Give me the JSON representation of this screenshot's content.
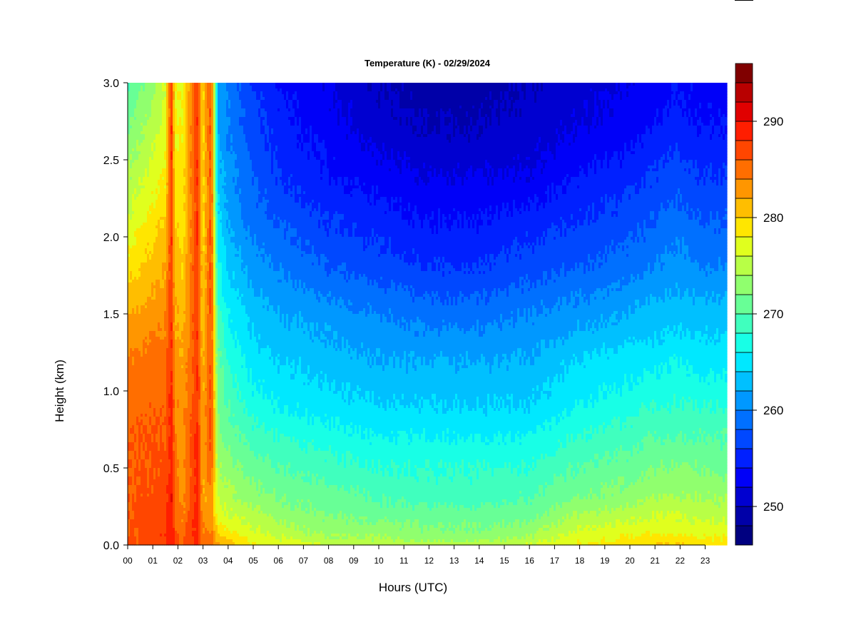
{
  "chart_data": {
    "type": "heatmap",
    "title": "Temperature (K) - 02/29/2024",
    "xlabel": "Hours (UTC)",
    "ylabel": "Height (km)",
    "xlim": [
      0,
      24
    ],
    "ylim": [
      0.0,
      3.0
    ],
    "x_ticks": [
      "00",
      "01",
      "02",
      "03",
      "04",
      "05",
      "06",
      "07",
      "08",
      "09",
      "10",
      "11",
      "12",
      "13",
      "14",
      "15",
      "16",
      "17",
      "18",
      "19",
      "20",
      "21",
      "22",
      "23"
    ],
    "y_ticks": [
      "0.0",
      "0.5",
      "1.0",
      "1.5",
      "2.0",
      "2.5",
      "3.0"
    ],
    "colorbar": {
      "label": "",
      "min": 246,
      "max": 294,
      "step": 2,
      "ticks": [
        250,
        260,
        270,
        280,
        290
      ],
      "tick_labels": [
        "250",
        "260",
        "270",
        "280",
        "290"
      ],
      "colors": [
        "#000080",
        "#0000a8",
        "#0000d0",
        "#0000f8",
        "#0020ff",
        "#0048ff",
        "#0070ff",
        "#0098ff",
        "#00c0ff",
        "#00e8ff",
        "#18ffe6",
        "#40ffbe",
        "#68ff96",
        "#90ff6e",
        "#b8ff46",
        "#e0ff1e",
        "#ffe600",
        "#ffbe00",
        "#ff9600",
        "#ff6e00",
        "#ff4600",
        "#ff1e00",
        "#e00000",
        "#b80000",
        "#800000"
      ]
    },
    "heights_km": [
      0.0,
      0.05,
      0.1,
      0.2,
      0.3,
      0.5,
      0.7,
      0.9,
      1.2,
      1.5,
      1.8,
      2.1,
      2.4,
      2.7,
      3.0
    ],
    "profiles": [
      {
        "hour": 0.0,
        "temps": [
          286,
          286,
          286,
          286,
          286,
          286,
          286,
          285,
          284,
          282,
          279,
          276,
          274,
          272,
          270
        ]
      },
      {
        "hour": 1.0,
        "temps": [
          287,
          287,
          287,
          287,
          286.5,
          286,
          286,
          285.5,
          285,
          283,
          281,
          279,
          277,
          275,
          273
        ]
      },
      {
        "hour": 1.5,
        "temps": [
          288,
          288,
          287.5,
          287,
          287,
          286.5,
          286,
          285.5,
          285,
          283.5,
          282,
          280,
          278,
          277,
          276
        ]
      },
      {
        "hour": 1.75,
        "temps": [
          290,
          290,
          290,
          290,
          290,
          289,
          289,
          289,
          288,
          288,
          288,
          288,
          288,
          288,
          288
        ]
      },
      {
        "hour": 1.9,
        "temps": [
          287,
          287,
          286,
          286,
          285,
          285,
          284,
          284,
          283,
          282,
          281,
          280,
          279,
          278,
          278
        ]
      },
      {
        "hour": 2.2,
        "temps": [
          286,
          286,
          285,
          284,
          283,
          283,
          283,
          283,
          282,
          281,
          280,
          279,
          279,
          278,
          278
        ]
      },
      {
        "hour": 2.8,
        "temps": [
          289,
          289,
          289,
          289,
          289,
          289,
          289,
          288,
          288,
          288,
          288,
          288,
          288,
          288,
          288
        ]
      },
      {
        "hour": 3.0,
        "temps": [
          285,
          285,
          284,
          283,
          282,
          282,
          282,
          282,
          281,
          280,
          280,
          279,
          279,
          279,
          279
        ]
      },
      {
        "hour": 3.35,
        "temps": [
          286,
          285,
          284,
          283,
          283,
          286,
          287,
          287,
          287,
          287,
          287,
          287,
          287,
          287,
          287
        ]
      },
      {
        "hour": 3.6,
        "temps": [
          282,
          281,
          279,
          277,
          276,
          274,
          273,
          272,
          271,
          269,
          267,
          265,
          263,
          262,
          262
        ]
      },
      {
        "hour": 4.0,
        "temps": [
          281,
          280,
          278,
          276,
          275,
          273,
          271,
          270,
          268,
          266,
          264,
          262,
          261,
          260,
          260
        ]
      },
      {
        "hour": 5.0,
        "temps": [
          278,
          277,
          276,
          275,
          273,
          271,
          269,
          267,
          265,
          263,
          261,
          259,
          258,
          257,
          256
        ]
      },
      {
        "hour": 6.0,
        "temps": [
          277,
          276,
          275,
          273,
          272,
          270,
          268,
          266,
          264,
          262,
          260,
          258,
          256,
          255,
          254
        ]
      },
      {
        "hour": 8.0,
        "temps": [
          276,
          274,
          273,
          272,
          271,
          269,
          267,
          265,
          263,
          261,
          258,
          256,
          254,
          253,
          252
        ]
      },
      {
        "hour": 10.0,
        "temps": [
          275,
          274,
          273,
          271,
          270,
          268,
          266,
          264,
          262,
          260,
          257,
          255,
          253,
          251,
          250
        ]
      },
      {
        "hour": 12.0,
        "temps": [
          275,
          273,
          272,
          271,
          269,
          268,
          266,
          264,
          262,
          259,
          256,
          254,
          252,
          250,
          249
        ]
      },
      {
        "hour": 14.0,
        "temps": [
          275,
          273,
          272,
          271,
          269,
          268,
          266,
          264,
          262,
          259,
          256,
          254,
          252,
          250,
          249
        ]
      },
      {
        "hour": 16.0,
        "temps": [
          276,
          274,
          273,
          271,
          270,
          268,
          266,
          264,
          262,
          260,
          257,
          255,
          252,
          251,
          250
        ]
      },
      {
        "hour": 18.0,
        "temps": [
          278,
          277,
          276,
          274,
          272,
          270,
          268,
          266,
          264,
          261,
          258,
          256,
          254,
          252,
          251
        ]
      },
      {
        "hour": 20.0,
        "temps": [
          279,
          278,
          277,
          275,
          273,
          271,
          269,
          267,
          265,
          262,
          259,
          257,
          255,
          253,
          252
        ]
      },
      {
        "hour": 21.0,
        "temps": [
          280,
          279,
          277,
          276,
          274,
          272,
          270,
          268,
          265,
          263,
          260,
          258,
          256,
          254,
          253
        ]
      },
      {
        "hour": 22.0,
        "temps": [
          280,
          279,
          277,
          276,
          274,
          272,
          270,
          268,
          266,
          263,
          261,
          259,
          257,
          255,
          254
        ]
      },
      {
        "hour": 23.0,
        "temps": [
          279,
          278,
          277,
          275,
          274,
          272,
          270,
          268,
          265,
          263,
          260,
          258,
          256,
          254,
          253
        ]
      },
      {
        "hour": 24.0,
        "temps": [
          279,
          278,
          277,
          275,
          274,
          271,
          270,
          268,
          265,
          263,
          260,
          258,
          256,
          254,
          253
        ]
      }
    ]
  }
}
